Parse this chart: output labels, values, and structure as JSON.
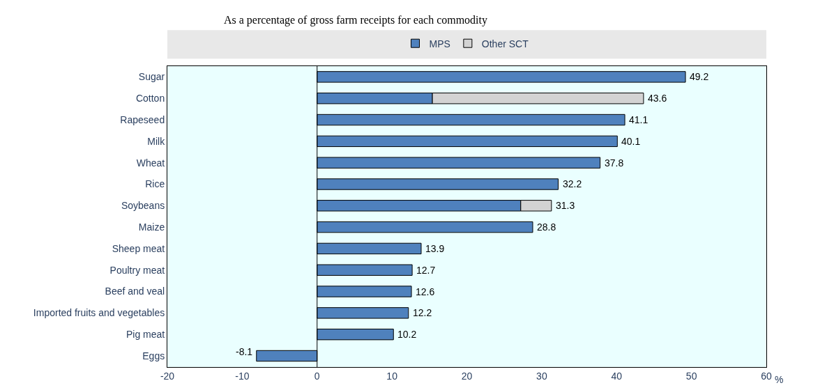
{
  "chart_data": {
    "type": "bar",
    "orientation": "horizontal",
    "stacked": true,
    "title": "As a percentage of gross farm receipts for each commodity",
    "xlabel": "%",
    "categories": [
      "Sugar",
      "Cotton",
      "Rapeseed",
      "Milk",
      "Wheat",
      "Rice",
      "Soybeans",
      "Maize",
      "Sheep meat",
      "Poultry meat",
      "Beef and veal",
      "Imported fruits and vegetables",
      "Pig meat",
      "Eggs"
    ],
    "series": [
      {
        "name": "MPS",
        "color": "#4f81bd",
        "values": [
          49.2,
          15.4,
          41.1,
          40.1,
          37.8,
          32.2,
          27.2,
          28.8,
          13.9,
          12.7,
          12.6,
          12.2,
          10.2,
          -8.1
        ]
      },
      {
        "name": "Other SCT",
        "color": "#d3d3d3",
        "values": [
          null,
          28.2,
          null,
          null,
          null,
          null,
          4.1,
          null,
          null,
          null,
          null,
          null,
          null,
          null
        ]
      }
    ],
    "totals": [
      "49.2",
      "43.6",
      "41.1",
      "40.1",
      "37.8",
      "32.2",
      "31.3",
      "28.8",
      "13.9",
      "12.7",
      "12.6",
      "12.2",
      "10.2",
      "-8.1"
    ],
    "xlim": [
      -20,
      60
    ],
    "xticks": [
      -20,
      -10,
      0,
      10,
      20,
      30,
      40,
      50,
      60
    ],
    "ref_lines": [
      {
        "axis": "x",
        "value": 0,
        "color": "#000000"
      }
    ],
    "grid": false,
    "legend": "top"
  }
}
